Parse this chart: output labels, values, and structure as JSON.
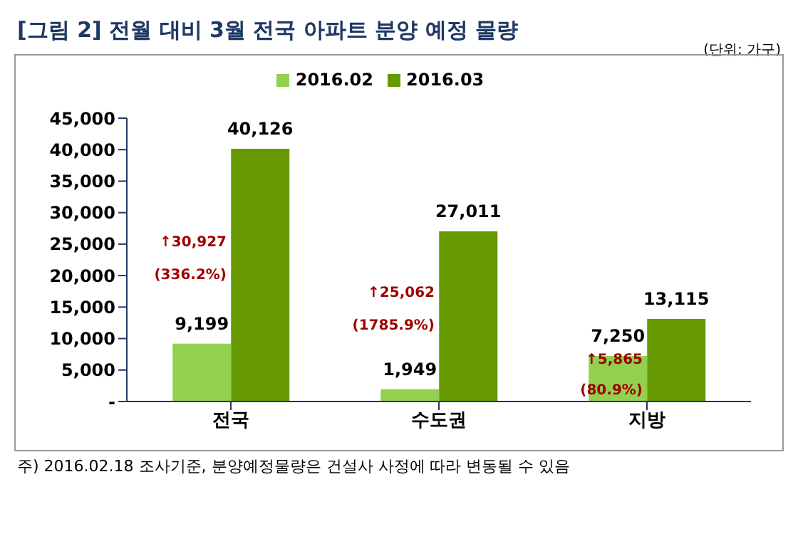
{
  "chart_data": {
    "type": "bar",
    "title": "[그림 2] 전월 대비 3월 전국 아파트 분양 예정 물량",
    "subtitle": "(단위: 가구)",
    "categories": [
      "전국",
      "수도권",
      "지방"
    ],
    "series": [
      {
        "name": "2016.02",
        "color": "#92d050",
        "values": [
          9199,
          1949,
          7250
        ],
        "value_labels": [
          "9,199",
          "1,949",
          "7,250"
        ]
      },
      {
        "name": "2016.03",
        "color": "#669900",
        "values": [
          40126,
          27011,
          13115
        ],
        "value_labels": [
          "40,126",
          "27,011",
          "13,115"
        ]
      }
    ],
    "ylim": [
      0,
      45000
    ],
    "yticks": [
      {
        "value": 0,
        "label": "-"
      },
      {
        "value": 5000,
        "label": "5,000"
      },
      {
        "value": 10000,
        "label": "10,000"
      },
      {
        "value": 15000,
        "label": "15,000"
      },
      {
        "value": 20000,
        "label": "20,000"
      },
      {
        "value": 25000,
        "label": "25,000"
      },
      {
        "value": 30000,
        "label": "30,000"
      },
      {
        "value": 35000,
        "label": "35,000"
      },
      {
        "value": 40000,
        "label": "40,000"
      },
      {
        "value": 45000,
        "label": "45,000"
      }
    ],
    "grid": false,
    "legend": "top",
    "annotations": [
      {
        "text": "↑30,927",
        "x": "전국",
        "y": 25500
      },
      {
        "text": "(336.2%)",
        "x": "전국",
        "y": 20300
      },
      {
        "text": "↑25,062",
        "x": "수도권",
        "y": 17450
      },
      {
        "text": "(1785.9%)",
        "x": "수도권",
        "y": 12260
      },
      {
        "text": "↑5,865",
        "x": "지방",
        "y": 6840
      },
      {
        "text": "(80.9%)",
        "x": "지방",
        "y": 1900
      },
      "주) 2016.02.18 조사기준, 분양예정물량은 건설사 사정에 따라 변동될 수 있음"
    ]
  }
}
